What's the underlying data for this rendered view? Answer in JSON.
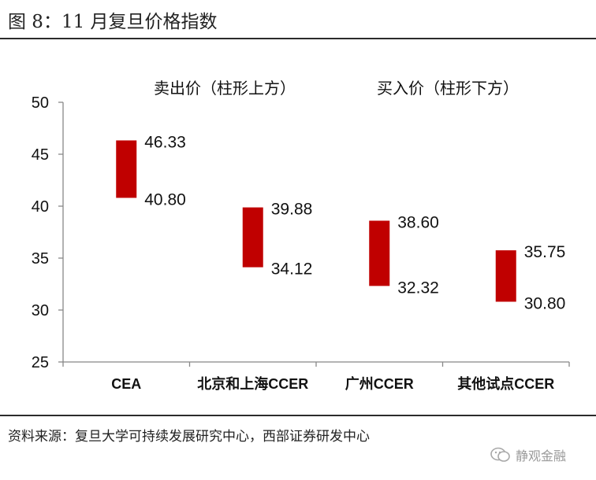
{
  "header": {
    "title": "图 8：11 月复旦价格指数"
  },
  "footer": {
    "source": "资料来源：复旦大学可持续发展研究中心，西部证券研发中心",
    "watermark": "静观金融"
  },
  "chart_data": {
    "type": "bar",
    "subtype": "floating-range",
    "title": "",
    "legend": [
      "卖出价（柱形上方）",
      "买入价（柱形下方）"
    ],
    "legend_position": "top",
    "categories": [
      "CEA",
      "北京和上海CCER",
      "广州CCER",
      "其他试点CCER"
    ],
    "series": [
      {
        "name": "卖出价（柱形上方）",
        "values": [
          46.33,
          39.88,
          38.6,
          35.75
        ]
      },
      {
        "name": "买入价（柱形下方）",
        "values": [
          40.8,
          34.12,
          32.32,
          30.8
        ]
      }
    ],
    "ylim": [
      25,
      50
    ],
    "yticks": [
      25,
      30,
      35,
      40,
      45,
      50
    ],
    "xlabel": "",
    "ylabel": "",
    "grid": false,
    "color": "#c00000"
  }
}
